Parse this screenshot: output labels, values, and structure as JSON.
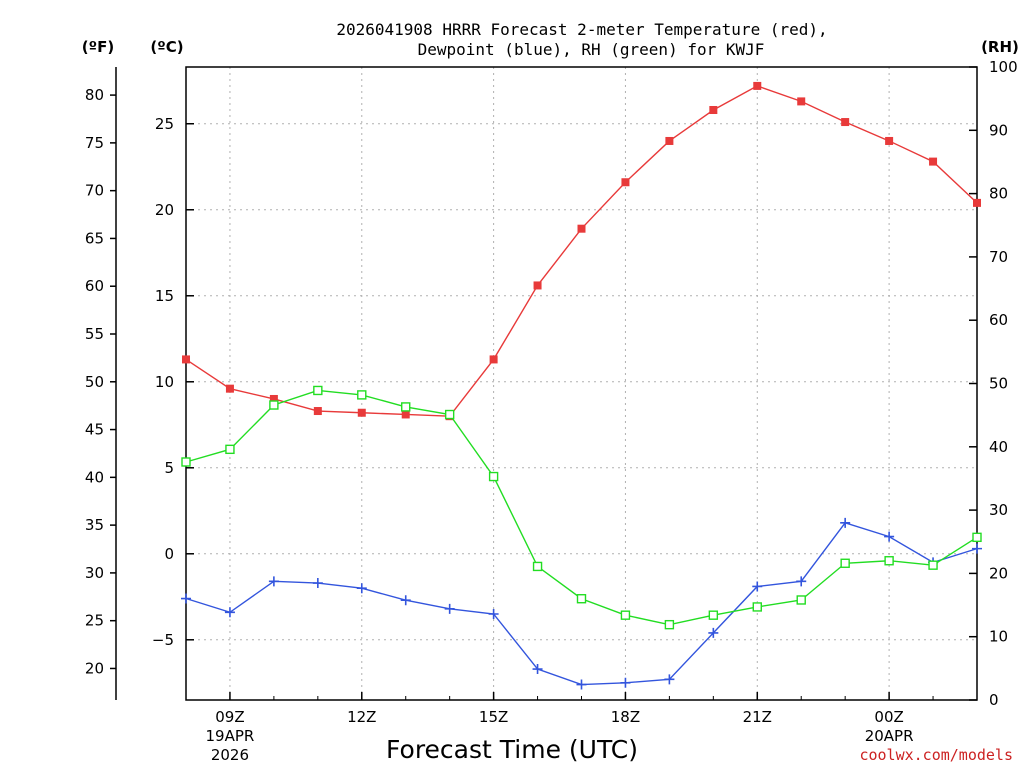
{
  "chart_data": {
    "type": "line",
    "title_line1": "2026041908 HRRR Forecast 2-meter Temperature (red),",
    "title_line2": "Dewpoint (blue), RH (green) for KWJF",
    "xlabel": "Forecast Time (UTC)",
    "credit": "coolwx.com/models",
    "units": {
      "fahrenheit": "(ºF)",
      "celsius": "(ºC)",
      "rh": "(RH)"
    },
    "x_hours": [
      8,
      9,
      10,
      11,
      12,
      13,
      14,
      15,
      16,
      17,
      18,
      19,
      20,
      21,
      22,
      23,
      24,
      25,
      26
    ],
    "x_ticks": [
      {
        "hour": 9,
        "label": "09Z",
        "date": "19APR",
        "year": "2026"
      },
      {
        "hour": 12,
        "label": "12Z"
      },
      {
        "hour": 15,
        "label": "15Z"
      },
      {
        "hour": 18,
        "label": "18Z"
      },
      {
        "hour": 21,
        "label": "21Z"
      },
      {
        "hour": 24,
        "label": "00Z",
        "date": "20APR"
      }
    ],
    "xlim": [
      8,
      26
    ],
    "celsius_axis": {
      "ylim": [
        -8.5,
        28.3
      ],
      "ticks": [
        -5,
        0,
        5,
        10,
        15,
        20,
        25
      ]
    },
    "fahrenheit_axis": {
      "ticks": [
        20,
        25,
        30,
        35,
        40,
        45,
        50,
        55,
        60,
        65,
        70,
        75,
        80
      ]
    },
    "rh_axis": {
      "ylim": [
        0,
        100
      ],
      "ticks": [
        0,
        10,
        20,
        30,
        40,
        50,
        60,
        70,
        80,
        90,
        100
      ]
    },
    "series": [
      {
        "name": "2-meter Temperature",
        "axis": "celsius",
        "color": "#e83a3a",
        "marker": "filled-square",
        "values": [
          11.3,
          9.6,
          9.0,
          8.3,
          8.2,
          8.1,
          8.0,
          11.3,
          15.6,
          18.9,
          21.6,
          24.0,
          25.8,
          27.2,
          26.3,
          25.1,
          24.0,
          22.8,
          20.4
        ]
      },
      {
        "name": "Dewpoint",
        "axis": "celsius",
        "color": "#3355dd",
        "marker": "plus",
        "values": [
          -2.6,
          -3.4,
          -1.6,
          -1.7,
          -2.0,
          -2.7,
          -3.2,
          -3.5,
          -6.7,
          -7.6,
          -7.5,
          -7.3,
          -4.6,
          -1.9,
          -1.6,
          1.8,
          1.0,
          -0.5,
          0.3
        ]
      },
      {
        "name": "Relative Humidity",
        "axis": "rh",
        "color": "#22dd22",
        "marker": "open-square",
        "values": [
          37.6,
          39.6,
          46.6,
          48.9,
          48.2,
          46.3,
          45.1,
          35.3,
          21.1,
          16.0,
          13.4,
          11.9,
          13.4,
          14.7,
          15.8,
          21.6,
          22.0,
          21.3,
          25.7
        ]
      }
    ]
  }
}
